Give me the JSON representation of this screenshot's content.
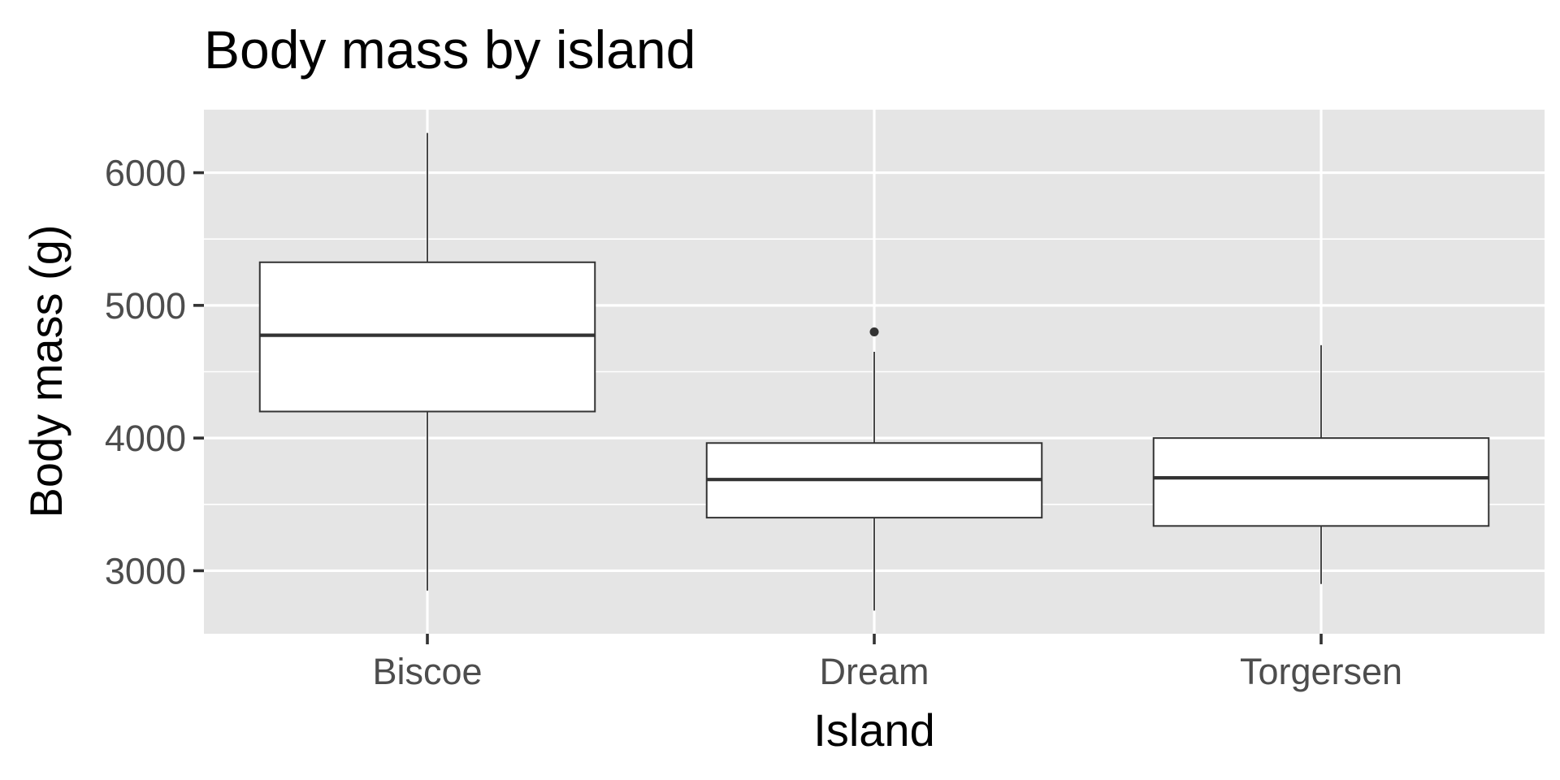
{
  "chart_data": {
    "type": "boxplot",
    "title": "Body mass by island",
    "xlabel": "Island",
    "ylabel": "Body mass (g)",
    "categories": [
      "Biscoe",
      "Dream",
      "Torgersen"
    ],
    "yticks": [
      3000,
      4000,
      5000,
      6000
    ],
    "ytick_labels": [
      "3000",
      "4000",
      "5000",
      "6000"
    ],
    "ylim": [
      2525,
      6475
    ],
    "grid": true,
    "legend": "none",
    "boxes": [
      {
        "category": "Biscoe",
        "whisker_low": 2850,
        "q1": 4200,
        "median": 4775,
        "q3": 5325,
        "whisker_high": 6300,
        "outliers": []
      },
      {
        "category": "Dream",
        "whisker_low": 2700,
        "q1": 3400,
        "median": 3687.5,
        "q3": 3962.5,
        "whisker_high": 4650,
        "outliers": [
          4800
        ]
      },
      {
        "category": "Torgersen",
        "whisker_low": 2900,
        "q1": 3337.5,
        "median": 3700,
        "q3": 4000,
        "whisker_high": 4700,
        "outliers": []
      }
    ],
    "colors": {
      "panel_background": "#e5e5e5",
      "grid": "#ffffff",
      "box_fill": "#ffffff",
      "box_stroke": "#333333",
      "tick": "#333333",
      "tick_label": "#4d4d4d",
      "text": "#000000"
    }
  }
}
